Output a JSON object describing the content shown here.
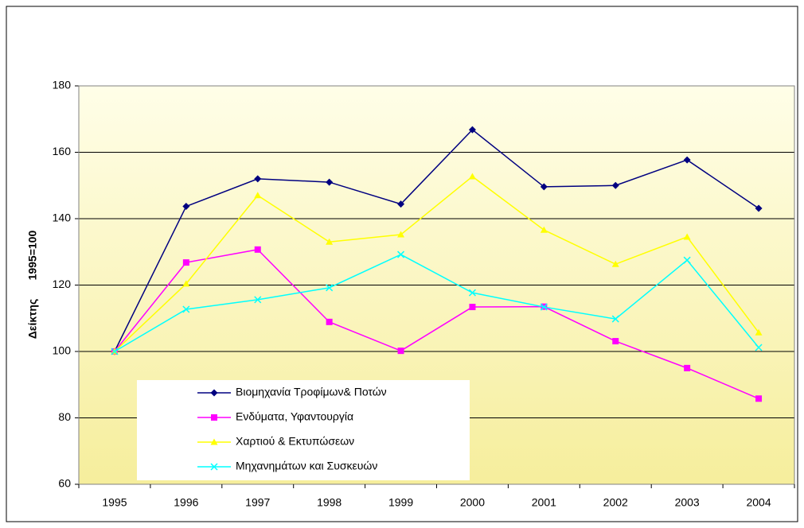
{
  "chart_data": {
    "type": "line",
    "y_label": "Δείκτης      1995=100",
    "categories": [
      "1995",
      "1996",
      "1997",
      "1998",
      "1999",
      "2000",
      "2001",
      "2002",
      "2003",
      "2004"
    ],
    "series": [
      {
        "name": "Βιομηχανία Τροφίμων& Ποτών",
        "color": "#000080",
        "marker": "diamond",
        "values": [
          100,
          143.7,
          152,
          151,
          144.4,
          166.8,
          149.6,
          150,
          157.7,
          143.1
        ]
      },
      {
        "name": "Ενδύματα, Υφαντουργία",
        "color": "#ff00ff",
        "marker": "square",
        "values": [
          100,
          126.8,
          130.7,
          108.9,
          100.2,
          113.4,
          113.5,
          103.1,
          95,
          85.8
        ]
      },
      {
        "name": "Χαρτιού & Εκτυπώσεων",
        "color": "#ffff00",
        "marker": "triangle",
        "values": [
          100,
          120.4,
          147,
          133,
          135.2,
          152.7,
          136.6,
          126.3,
          134.5,
          105.7
        ]
      },
      {
        "name": "Μηχανημάτων και Συσκευών",
        "color": "#00ffff",
        "marker": "cross",
        "values": [
          100,
          112.7,
          115.6,
          119.2,
          129.2,
          117.7,
          113.4,
          109.8,
          127.5,
          101.2
        ]
      }
    ],
    "ylim": [
      60,
      180
    ],
    "yticks": [
      60,
      80,
      100,
      120,
      140,
      160,
      180
    ],
    "grid": true
  }
}
